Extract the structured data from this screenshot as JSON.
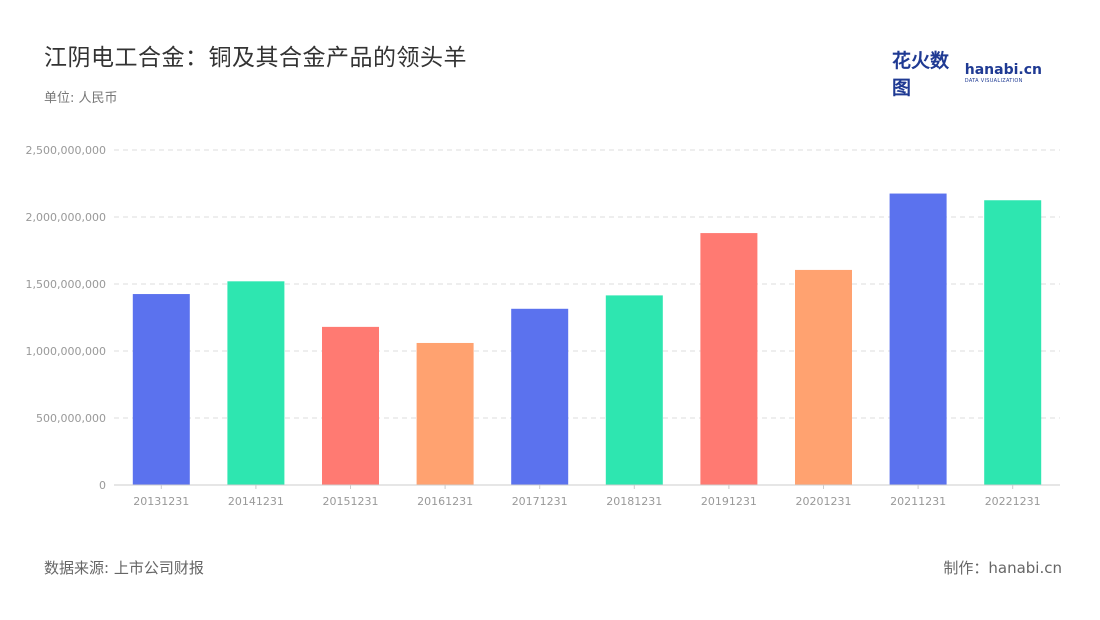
{
  "header": {
    "title": "江阴电工合金：铜及其合金产品的领头羊",
    "unit": "单位: 人民币"
  },
  "logo": {
    "text_cn": "花火数图",
    "text_en": "hanabi.cn",
    "text_sub": "DATA VISUALIZATION"
  },
  "footer": {
    "source": "数据来源: 上市公司财报",
    "credit": "制作：hanabi.cn"
  },
  "chart_data": {
    "type": "bar",
    "categories": [
      "20131231",
      "20141231",
      "20151231",
      "20161231",
      "20171231",
      "20181231",
      "20191231",
      "20201231",
      "20211231",
      "20221231"
    ],
    "values": [
      1425000000,
      1520000000,
      1180000000,
      1060000000,
      1315000000,
      1415000000,
      1880000000,
      1605000000,
      2175000000,
      2125000000
    ],
    "bar_colors": [
      "#5b72ee",
      "#2ee6b0",
      "#ff7a72",
      "#ffa270",
      "#5b72ee",
      "#2ee6b0",
      "#ff7a72",
      "#ffa270",
      "#5b72ee",
      "#2ee6b0"
    ],
    "ylim": [
      0,
      2500000000
    ],
    "yticks": [
      0,
      500000000,
      1000000000,
      1500000000,
      2000000000,
      2500000000
    ],
    "ytick_labels": [
      "0",
      "500,000,000",
      "1,000,000,000",
      "1,500,000,000",
      "2,000,000,000",
      "2,500,000,000"
    ],
    "grid": true,
    "legend": "none"
  }
}
